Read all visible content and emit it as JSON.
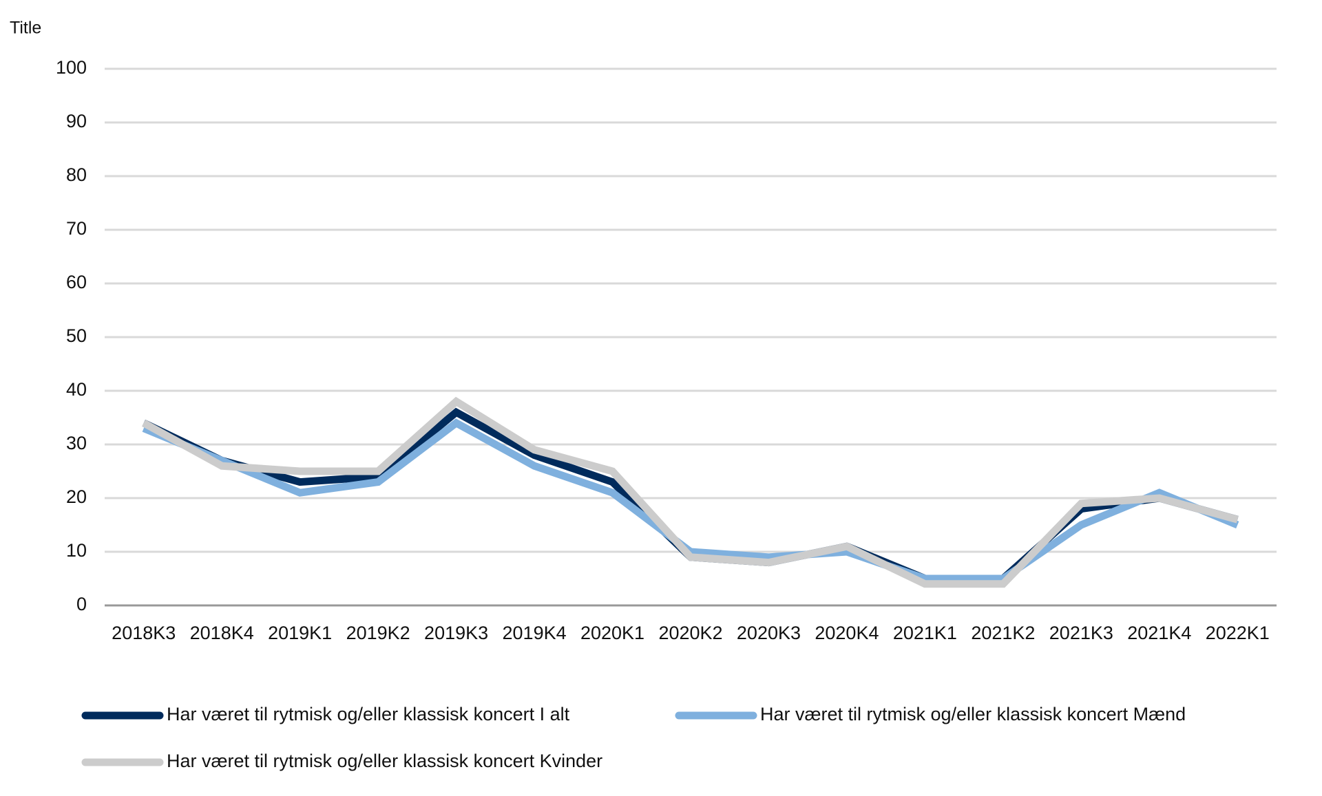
{
  "chart_data": {
    "type": "line",
    "title": "Title",
    "categories": [
      "2018K3",
      "2018K4",
      "2019K1",
      "2019K2",
      "2019K3",
      "2019K4",
      "2020K1",
      "2020K2",
      "2020K3",
      "2020K4",
      "2021K1",
      "2021K2",
      "2021K3",
      "2021K4",
      "2022K1"
    ],
    "series": [
      {
        "name": "Har været til rytmisk og/eller klassisk koncert I alt",
        "color": "#002b5c",
        "values": [
          34,
          27,
          23,
          24,
          36,
          28,
          23,
          9,
          8,
          11,
          5,
          5,
          18,
          20,
          16
        ]
      },
      {
        "name": "Har været til rytmisk og/eller klassisk koncert Mænd",
        "color": "#7fb0de",
        "values": [
          33,
          27,
          21,
          23,
          34,
          26,
          21,
          10,
          9,
          10,
          5,
          5,
          15,
          21,
          15
        ]
      },
      {
        "name": "Har været til rytmisk og/eller klassisk koncert Kvinder",
        "color": "#cccccc",
        "values": [
          34,
          26,
          25,
          25,
          38,
          29,
          25,
          9,
          8,
          11,
          4,
          4,
          19,
          20,
          16
        ]
      }
    ],
    "ylim": [
      0,
      100
    ],
    "yticks": [
      0,
      10,
      20,
      30,
      40,
      50,
      60,
      70,
      80,
      90,
      100
    ],
    "grid": true
  }
}
